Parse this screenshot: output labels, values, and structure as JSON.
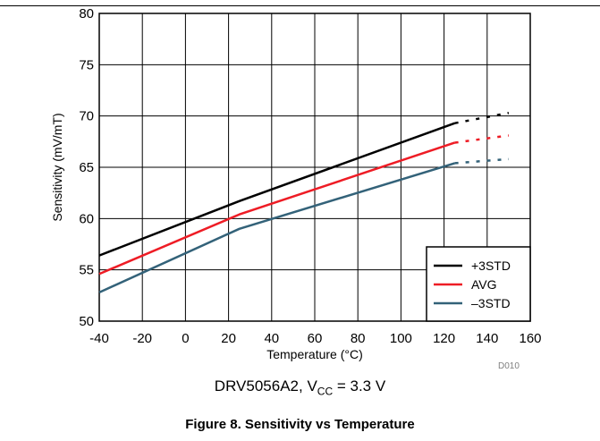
{
  "chart_data": {
    "type": "line",
    "title": "",
    "xlabel": "Temperature (°C)",
    "ylabel": "Sensitivity (mV/mT)",
    "xlim": [
      -40,
      160
    ],
    "ylim": [
      50,
      80
    ],
    "xticks": [
      -40,
      -20,
      0,
      20,
      40,
      60,
      80,
      100,
      120,
      140,
      160
    ],
    "yticks": [
      50,
      55,
      60,
      65,
      70,
      75,
      80
    ],
    "grid": true,
    "legend_position": "bottom-right",
    "solid_until_x": 125,
    "series": [
      {
        "name": "+3STD",
        "color": "#000000",
        "x": [
          -40,
          25,
          125,
          150
        ],
        "y": [
          56.4,
          61.7,
          69.3,
          70.3
        ]
      },
      {
        "name": "AVG",
        "color": "#ee1c25",
        "x": [
          -40,
          25,
          125,
          150
        ],
        "y": [
          54.6,
          60.4,
          67.4,
          68.1
        ]
      },
      {
        "name": "–3STD",
        "color": "#336279",
        "x": [
          -40,
          25,
          125,
          150
        ],
        "y": [
          52.8,
          59.0,
          65.4,
          65.8
        ]
      }
    ]
  },
  "subtitle": {
    "part": "DRV5056A2, V",
    "sub": "CC",
    "rest": " = 3.3 V"
  },
  "figure_code": "D010",
  "caption": "Figure 8. Sensitivity vs Temperature"
}
